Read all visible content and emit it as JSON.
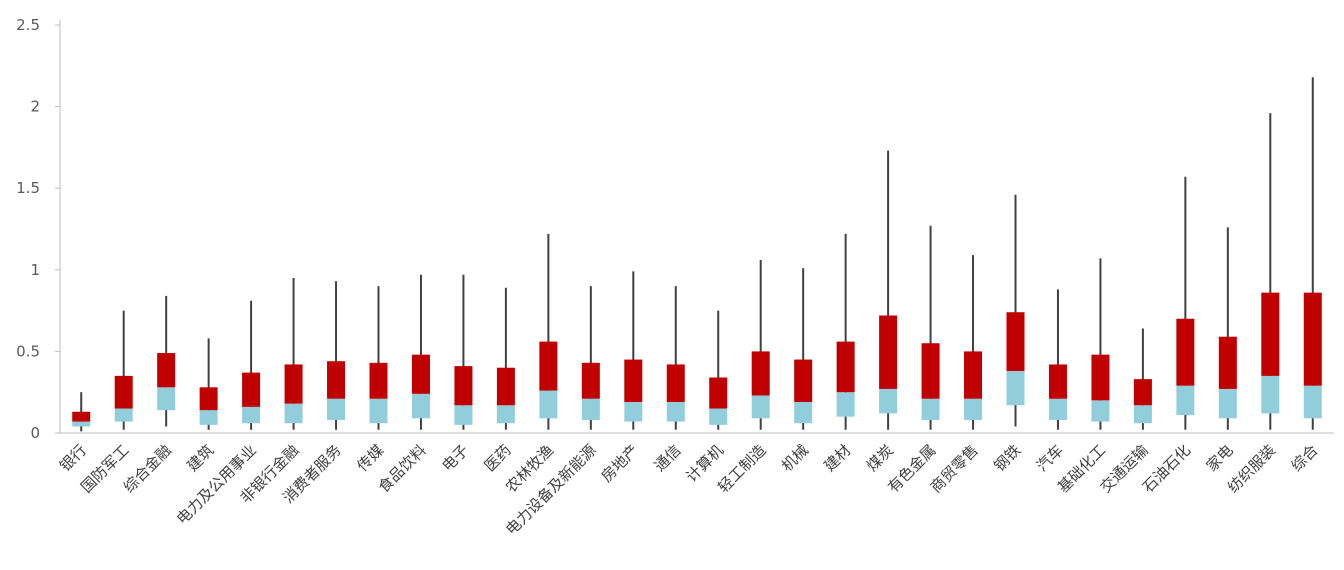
{
  "chart_data": {
    "type": "boxplot",
    "categories": [
      "银行",
      "国防军工",
      "综合金融",
      "建筑",
      "电力及公用事业",
      "非银行金融",
      "消费者服务",
      "传媒",
      "食品饮料",
      "电子",
      "医药",
      "农林牧渔",
      "电力设备及新能源",
      "房地产",
      "通信",
      "计算机",
      "轻工制造",
      "机械",
      "建材",
      "煤炭",
      "有色金属",
      "商贸零售",
      "钢铁",
      "汽车",
      "基础化工",
      "交通运输",
      "石油石化",
      "家电",
      "纺织服装",
      "综合"
    ],
    "series": [
      {
        "values": [
          0.01,
          0.04,
          0.07,
          0.13,
          0.25
        ]
      },
      {
        "values": [
          0.02,
          0.07,
          0.15,
          0.35,
          0.75
        ]
      },
      {
        "values": [
          0.04,
          0.14,
          0.28,
          0.49,
          0.84
        ]
      },
      {
        "values": [
          0.02,
          0.05,
          0.14,
          0.28,
          0.58
        ]
      },
      {
        "values": [
          0.02,
          0.06,
          0.16,
          0.37,
          0.81
        ]
      },
      {
        "values": [
          0.02,
          0.06,
          0.18,
          0.42,
          0.95
        ]
      },
      {
        "values": [
          0.02,
          0.08,
          0.21,
          0.44,
          0.93
        ]
      },
      {
        "values": [
          0.02,
          0.06,
          0.21,
          0.43,
          0.9
        ]
      },
      {
        "values": [
          0.02,
          0.09,
          0.24,
          0.48,
          0.97
        ]
      },
      {
        "values": [
          0.02,
          0.05,
          0.17,
          0.41,
          0.97
        ]
      },
      {
        "values": [
          0.02,
          0.06,
          0.17,
          0.4,
          0.89
        ]
      },
      {
        "values": [
          0.02,
          0.09,
          0.26,
          0.56,
          1.22
        ]
      },
      {
        "values": [
          0.02,
          0.08,
          0.21,
          0.43,
          0.9
        ]
      },
      {
        "values": [
          0.02,
          0.07,
          0.19,
          0.45,
          0.99
        ]
      },
      {
        "values": [
          0.02,
          0.07,
          0.19,
          0.42,
          0.9
        ]
      },
      {
        "values": [
          0.02,
          0.05,
          0.15,
          0.34,
          0.75
        ]
      },
      {
        "values": [
          0.02,
          0.09,
          0.23,
          0.5,
          1.06
        ]
      },
      {
        "values": [
          0.02,
          0.06,
          0.19,
          0.45,
          1.01
        ]
      },
      {
        "values": [
          0.02,
          0.1,
          0.25,
          0.56,
          1.22
        ]
      },
      {
        "values": [
          0.02,
          0.12,
          0.27,
          0.72,
          1.73
        ]
      },
      {
        "values": [
          0.02,
          0.08,
          0.21,
          0.55,
          1.27
        ]
      },
      {
        "values": [
          0.02,
          0.08,
          0.21,
          0.5,
          1.09
        ]
      },
      {
        "values": [
          0.04,
          0.17,
          0.38,
          0.74,
          1.46
        ]
      },
      {
        "values": [
          0.02,
          0.08,
          0.21,
          0.42,
          0.88
        ]
      },
      {
        "values": [
          0.02,
          0.07,
          0.2,
          0.48,
          1.07
        ]
      },
      {
        "values": [
          0.02,
          0.06,
          0.17,
          0.33,
          0.64
        ]
      },
      {
        "values": [
          0.02,
          0.11,
          0.29,
          0.7,
          1.57
        ]
      },
      {
        "values": [
          0.02,
          0.09,
          0.27,
          0.59,
          1.26
        ]
      },
      {
        "values": [
          0.02,
          0.12,
          0.35,
          0.86,
          1.96
        ]
      },
      {
        "values": [
          0.02,
          0.09,
          0.29,
          0.86,
          2.18
        ]
      }
    ],
    "value_order": [
      "min",
      "q1",
      "median",
      "q3",
      "max"
    ],
    "ylim": [
      0,
      2.5
    ],
    "yticks": [
      0,
      0.5,
      1,
      1.5,
      2,
      2.5
    ],
    "ytick_labels": [
      "0",
      "0.5",
      "1",
      "1.5",
      "2",
      "2.5"
    ],
    "grid": false,
    "legend": "none",
    "colors": {
      "lower_box": "#92cddc",
      "upper_box": "#c00000",
      "whisker": "#404040",
      "axis": "#bfbfbf",
      "tick_text": "#595959"
    }
  }
}
